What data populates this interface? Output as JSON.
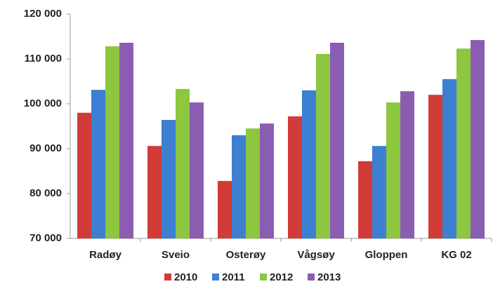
{
  "chart_data": {
    "type": "bar",
    "categories": [
      "Radøy",
      "Sveio",
      "Osterøy",
      "Vågsøy",
      "Gloppen",
      "KG 02"
    ],
    "series": [
      {
        "name": "2010",
        "color": "#d13b38",
        "values": [
          98000,
          90600,
          82800,
          97200,
          87200,
          102000
        ]
      },
      {
        "name": "2011",
        "color": "#3d7fd1",
        "values": [
          103100,
          96400,
          93000,
          103000,
          90600,
          105500
        ]
      },
      {
        "name": "2012",
        "color": "#8dc63f",
        "values": [
          112800,
          103300,
          94500,
          111100,
          100300,
          112300
        ]
      },
      {
        "name": "2013",
        "color": "#8b5db2",
        "values": [
          113600,
          100300,
          95600,
          113600,
          102800,
          114200
        ]
      }
    ],
    "ylim": [
      70000,
      120000
    ],
    "yticks": [
      {
        "value": 70000,
        "label": "70 000"
      },
      {
        "value": 80000,
        "label": "80 000"
      },
      {
        "value": 90000,
        "label": "90 000"
      },
      {
        "value": 100000,
        "label": "100 000"
      },
      {
        "value": 110000,
        "label": "110 000"
      },
      {
        "value": 120000,
        "label": "120 000"
      }
    ],
    "grid": false,
    "legend": "bottom"
  }
}
